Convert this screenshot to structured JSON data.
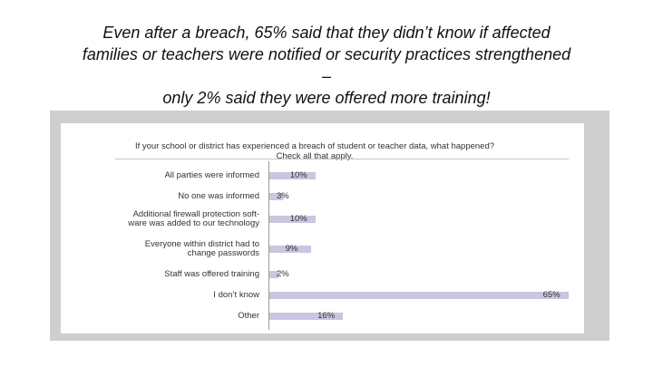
{
  "slide": {
    "title_lines": [
      "Even after a breach, 65% said that they didn’t know if affected",
      "families or teachers were notified or security practices strengthened",
      "–",
      "only 2% said they were offered more training!"
    ]
  },
  "chart_data": {
    "type": "bar",
    "orientation": "horizontal",
    "title": "If your school or district has experienced a breach of student or teacher data, what happened?",
    "subtitle": "Check all that apply.",
    "categories": [
      [
        "All parties were informed"
      ],
      [
        "No one was informed"
      ],
      [
        "Additional firewall protection soft-",
        "ware was added to our technology"
      ],
      [
        "Everyone within district had to",
        "change passwords"
      ],
      [
        "Staff was offered training"
      ],
      [
        "I don’t know"
      ],
      [
        "Other"
      ]
    ],
    "values": [
      10,
      3,
      10,
      9,
      2,
      65,
      16
    ],
    "value_labels": [
      "10%",
      "3%",
      "10%",
      "9%",
      "2%",
      "65%",
      "16%"
    ],
    "xlim": [
      0,
      70
    ],
    "colors": {
      "bar": "#c9c6e0",
      "frame": "#cfcfcf"
    }
  }
}
